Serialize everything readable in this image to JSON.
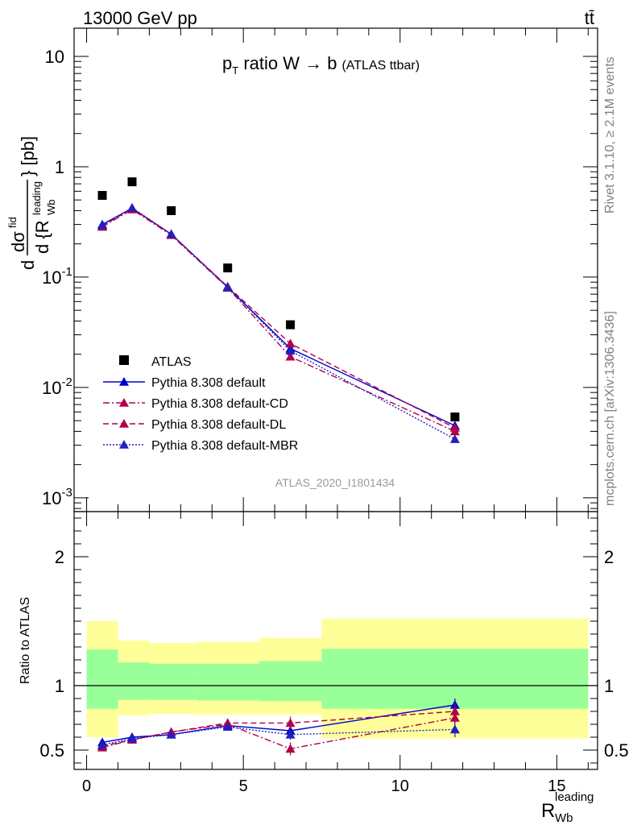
{
  "header": {
    "left": "13000 GeV pp",
    "right": "tt̄"
  },
  "side_labels": {
    "rivet": "Rivet 3.1.10, ≥ 2.1M events",
    "mcplots": "mcplots.cern.ch [arXiv:1306.3436]"
  },
  "watermark": "ATLAS_2020_I1801434",
  "chart_data": {
    "type": "line",
    "title": {
      "main": "p",
      "sub": "T",
      "rest": " ratio W → b",
      "small": "(ATLAS ttbar)"
    },
    "ylabel_upper": "d dσ^{fid} / d{R_{Wb}^{leading}} [pb]",
    "ylabel_lower": "Ratio to ATLAS",
    "xlabel": {
      "main": "R",
      "sub": "Wb",
      "sup": "leading"
    },
    "x_ticks": [
      0,
      5,
      10,
      15
    ],
    "xlim": [
      -0.4,
      16.3
    ],
    "upper_ylim": [
      0.00075,
      18
    ],
    "upper_y_ticks": [
      {
        "base": "10",
        "exp": "-3",
        "value": 0.001
      },
      {
        "base": "10",
        "exp": "-2",
        "value": 0.01
      },
      {
        "base": "10",
        "exp": "-1",
        "value": 0.1
      },
      {
        "base": "1",
        "exp": "",
        "value": 1
      },
      {
        "base": "10",
        "exp": "",
        "value": 10
      }
    ],
    "lower_ylim": [
      0.35,
      2.35
    ],
    "lower_y_ticks": [
      0.5,
      1,
      2
    ],
    "x": [
      0.5,
      1.45,
      2.7,
      4.5,
      6.5,
      11.75
    ],
    "bin_edges": [
      0,
      1,
      2,
      3.5,
      5.5,
      7.5,
      16
    ],
    "data": {
      "name": "ATLAS",
      "values": [
        0.55,
        0.73,
        0.4,
        0.121,
        0.037,
        0.0054
      ]
    },
    "series": [
      {
        "name": "Pythia 8.308 default",
        "color": "#0000cc",
        "dash": "solid",
        "values": [
          0.3,
          0.42,
          0.245,
          0.081,
          0.0225,
          0.0045
        ],
        "ratio": [
          0.56,
          0.6,
          0.62,
          0.69,
          0.65,
          0.85
        ],
        "ratio_err": [
          0.02,
          0.02,
          0.015,
          0.02,
          0.04,
          0.05
        ]
      },
      {
        "name": "Pythia 8.308 default-CD",
        "color": "#b0004a",
        "dash": "dashdot",
        "values": [
          0.285,
          0.41,
          0.24,
          0.08,
          0.019,
          0.004
        ],
        "ratio": [
          0.52,
          0.58,
          0.64,
          0.7,
          0.51,
          0.75
        ],
        "ratio_err": [
          0.02,
          0.02,
          0.015,
          0.02,
          0.05,
          0.08
        ]
      },
      {
        "name": "Pythia 8.308 default-DL",
        "color": "#b0004a",
        "dash": "dashed",
        "values": [
          0.29,
          0.42,
          0.245,
          0.082,
          0.025,
          0.0043
        ],
        "ratio": [
          0.53,
          0.58,
          0.64,
          0.71,
          0.71,
          0.8
        ],
        "ratio_err": [
          0.02,
          0.02,
          0.015,
          0.02,
          0.05,
          0.06
        ]
      },
      {
        "name": "Pythia 8.308 default-MBR",
        "color": "#2020c0",
        "dash": "dotted",
        "values": [
          0.295,
          0.425,
          0.245,
          0.081,
          0.0215,
          0.0034
        ],
        "ratio": [
          0.54,
          0.59,
          0.62,
          0.68,
          0.62,
          0.66
        ],
        "ratio_err": [
          0.02,
          0.02,
          0.015,
          0.02,
          0.04,
          0.06
        ]
      }
    ],
    "bands": {
      "green": [
        [
          0.82,
          1.28
        ],
        [
          0.89,
          1.18
        ],
        [
          0.89,
          1.17
        ],
        [
          0.885,
          1.17
        ],
        [
          0.88,
          1.19
        ],
        [
          0.82,
          1.285
        ]
      ],
      "yellow": [
        [
          0.6,
          1.5
        ],
        [
          0.77,
          1.35
        ],
        [
          0.78,
          1.33
        ],
        [
          0.775,
          1.34
        ],
        [
          0.775,
          1.37
        ],
        [
          0.59,
          1.52
        ]
      ]
    }
  }
}
